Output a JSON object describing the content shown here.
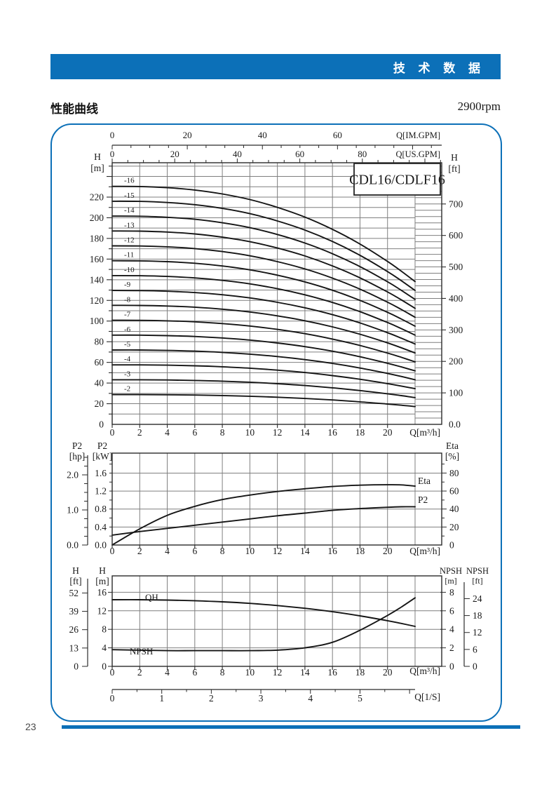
{
  "page": {
    "number": "23"
  },
  "header": {
    "title": "技 术 数 据"
  },
  "section": {
    "title": "性能曲线",
    "rpm": "2900rpm"
  },
  "colors": {
    "accent": "#0c70b8",
    "grid": "#7f7f7f",
    "axis": "#2a2a2a",
    "curve": "#151515",
    "text": "#1a1a1a"
  },
  "chart_data": [
    {
      "id": "head-capacity",
      "type": "line",
      "title": "CDL16/CDLF16",
      "x_axis_m3h": {
        "label": "Q[m³/h]",
        "ticks": [
          0,
          2,
          4,
          6,
          8,
          10,
          12,
          14,
          16,
          18,
          20
        ],
        "max": 23.9,
        "grid_step": 2,
        "grid": true
      },
      "top_axis_im_gpm": {
        "label": "Q[IM.GPM]",
        "ticks": [
          0,
          20,
          40,
          60
        ],
        "minor_step": 5
      },
      "top_axis_us_gpm": {
        "label": "Q[US.GPM]",
        "ticks": [
          0,
          20,
          40,
          60,
          80
        ],
        "minor_step": 5
      },
      "y_left": {
        "name": "H",
        "unit": "[m]",
        "ticks": [
          0,
          20,
          40,
          60,
          80,
          100,
          120,
          140,
          160,
          180,
          200,
          220
        ],
        "grid_step": 10,
        "max": 253
      },
      "y_right": {
        "name": "H",
        "unit": "[ft]",
        "ticks": [
          100,
          200,
          300,
          400,
          500,
          600,
          700
        ],
        "zero_label": "0.0",
        "column_step_ft": 20
      },
      "series_x_m3h": [
        0,
        2,
        4,
        6,
        8,
        10,
        12,
        14,
        16,
        18,
        20,
        21,
        22
      ],
      "unit_head_m": [
        14.4,
        14.39,
        14.32,
        14.18,
        13.94,
        13.6,
        13.13,
        12.54,
        11.8,
        10.91,
        9.86,
        9.27,
        8.64
      ],
      "stages": [
        16,
        15,
        14,
        13,
        12,
        11,
        10,
        9,
        8,
        7,
        6,
        5,
        4,
        3,
        2
      ],
      "stage_label_prefix": "-"
    },
    {
      "id": "power-efficiency",
      "type": "line",
      "x_axis_m3h": {
        "label": "Q[m³/h]",
        "ticks": [
          0,
          2,
          4,
          6,
          8,
          10,
          12,
          14,
          16,
          18,
          20
        ],
        "max": 23.9,
        "grid_step": 2,
        "grid": true
      },
      "y_left_hp": {
        "name": "P2",
        "unit": "[hp]",
        "ticks": [
          "0.0",
          "1.0",
          "2.0"
        ],
        "minor_step_hp": 0.25
      },
      "y_left_kw": {
        "name": "P2",
        "unit": "[kW]",
        "ticks": [
          "0.0",
          "0.4",
          "0.8",
          "1.2",
          "1.6"
        ],
        "grid_step_kw": 0.4,
        "max_kw": 2.04
      },
      "y_right_eta": {
        "name": "Eta",
        "unit": "[%]",
        "ticks": [
          0,
          20,
          40,
          60,
          80
        ],
        "minor_step": 10
      },
      "series_x_m3h": [
        0,
        2,
        4,
        6,
        8,
        10,
        12,
        14,
        16,
        18,
        20,
        21,
        22
      ],
      "series": [
        {
          "name": "Eta",
          "unit": "%",
          "values": [
            0,
            18,
            33,
            43,
            50.5,
            55.5,
            59.5,
            62.5,
            65,
            66.5,
            67,
            66.8,
            65.5
          ]
        },
        {
          "name": "P2",
          "unit": "kW",
          "values": [
            0.22,
            0.3,
            0.37,
            0.44,
            0.51,
            0.58,
            0.65,
            0.71,
            0.77,
            0.81,
            0.84,
            0.85,
            0.85
          ]
        }
      ]
    },
    {
      "id": "qh-npsh",
      "type": "line",
      "x_axis_m3h": {
        "label": "Q[m³/h]",
        "ticks": [
          0,
          2,
          4,
          6,
          8,
          10,
          12,
          14,
          16,
          18,
          20
        ],
        "max": 23.9,
        "grid_step": 2,
        "grid": true
      },
      "x_axis_ls": {
        "label": "Q[1/S]",
        "ticks": [
          0,
          1,
          2,
          3,
          4,
          5
        ],
        "minor_step": 0.5,
        "m3h_per_unit": 3.6
      },
      "y_left_ft": {
        "name": "H",
        "unit": "[ft]",
        "ticks": [
          0,
          13,
          26,
          39,
          52
        ]
      },
      "y_left_m": {
        "name": "H",
        "unit": "[m]",
        "ticks": [
          0,
          4,
          8,
          12,
          16
        ],
        "grid_step": 4,
        "max": 19.5
      },
      "y_right_npsh_m": {
        "name": "NPSH",
        "unit": "[m]",
        "ticks": [
          0,
          2,
          4,
          6,
          8
        ]
      },
      "y_right_npsh_ft": {
        "name": "NPSH",
        "unit": "[ft]",
        "ticks": [
          0,
          6,
          12,
          18,
          24
        ]
      },
      "series_x_m3h": [
        0,
        2,
        4,
        6,
        8,
        10,
        12,
        14,
        16,
        18,
        20,
        21,
        22
      ],
      "series": [
        {
          "name": "QH",
          "unit": "m",
          "values": [
            14.4,
            14.39,
            14.32,
            14.18,
            13.94,
            13.6,
            13.13,
            12.54,
            11.8,
            10.91,
            9.86,
            9.27,
            8.64
          ]
        },
        {
          "name": "NPSH",
          "unit": "m",
          "values": [
            1.8,
            1.75,
            1.7,
            1.7,
            1.7,
            1.7,
            1.75,
            2.0,
            2.6,
            3.9,
            5.5,
            6.4,
            7.4
          ]
        }
      ]
    }
  ]
}
